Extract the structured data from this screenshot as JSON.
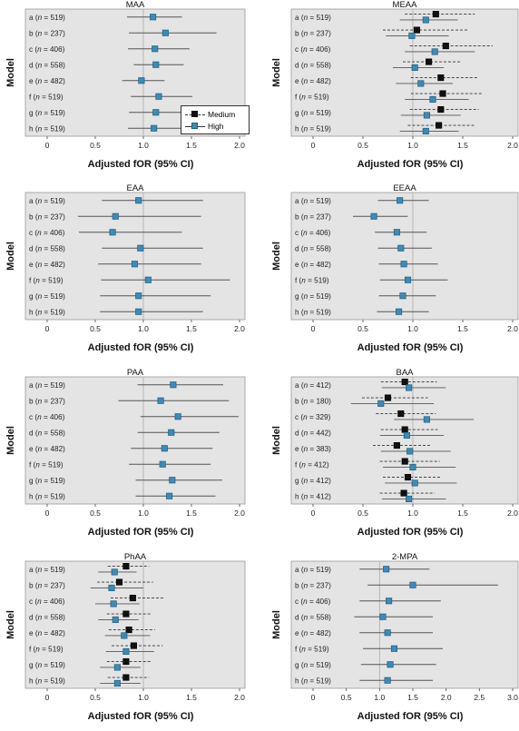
{
  "chart_data": [
    {
      "type": "forest",
      "title": "MAA",
      "xlabel": "Adjusted fOR (95% CI)",
      "ylabel": "Model",
      "xlim": [
        0,
        2.0
      ],
      "xticks": [
        "0",
        "0.5",
        "1.0",
        "1.5",
        "2.0"
      ],
      "rows": [
        {
          "label": "a (",
          "n": "519",
          "tail": ")"
        },
        {
          "label": "b (",
          "n": "237",
          "tail": ")"
        },
        {
          "label": "c (",
          "n": "406",
          "tail": ")"
        },
        {
          "label": "d (",
          "n": "558",
          "tail": ")"
        },
        {
          "label": "e (",
          "n": "482",
          "tail": ")"
        },
        {
          "label": "f (",
          "n": "519",
          "tail": ")"
        },
        {
          "label": "g (",
          "n": "519",
          "tail": ")"
        },
        {
          "label": "h (",
          "n": "519",
          "tail": ")"
        }
      ],
      "series": [
        {
          "name": "High",
          "est": [
            1.1,
            1.23,
            1.12,
            1.13,
            0.98,
            1.16,
            1.13,
            1.11
          ],
          "lo": [
            0.83,
            0.85,
            0.84,
            0.9,
            0.78,
            0.87,
            0.85,
            0.84
          ],
          "hi": [
            1.4,
            1.76,
            1.48,
            1.42,
            1.22,
            1.51,
            1.44,
            1.42
          ]
        }
      ]
    },
    {
      "type": "forest",
      "title": "MEAA",
      "xlabel": "Adjusted fOR (95% CI)",
      "ylabel": "Model",
      "xlim": [
        0,
        2.0
      ],
      "xticks": [
        "0",
        "0.5",
        "1.0",
        "1.5",
        "2.0"
      ],
      "rows": [
        {
          "label": "a (",
          "n": "519",
          "tail": ")"
        },
        {
          "label": "b (",
          "n": "237",
          "tail": ")"
        },
        {
          "label": "c (",
          "n": "406",
          "tail": ")"
        },
        {
          "label": "d (",
          "n": "558",
          "tail": ")"
        },
        {
          "label": "e (",
          "n": "482",
          "tail": ")"
        },
        {
          "label": "f (",
          "n": "519",
          "tail": ")"
        },
        {
          "label": "g (",
          "n": "519",
          "tail": ")"
        },
        {
          "label": "h (",
          "n": "519",
          "tail": ")"
        }
      ],
      "series": [
        {
          "name": "Medium",
          "est": [
            1.23,
            1.04,
            1.33,
            1.16,
            1.28,
            1.3,
            1.28,
            1.26
          ],
          "lo": [
            0.92,
            0.7,
            0.97,
            0.9,
            0.98,
            0.98,
            0.97,
            0.95
          ],
          "hi": [
            1.62,
            1.55,
            1.8,
            1.49,
            1.65,
            1.7,
            1.66,
            1.63
          ]
        },
        {
          "name": "High",
          "est": [
            1.13,
            0.99,
            1.22,
            1.02,
            1.08,
            1.2,
            1.14,
            1.13
          ],
          "lo": [
            0.87,
            0.73,
            0.92,
            0.8,
            0.83,
            0.92,
            0.88,
            0.87
          ],
          "hi": [
            1.45,
            1.36,
            1.62,
            1.31,
            1.4,
            1.56,
            1.48,
            1.46
          ]
        }
      ]
    },
    {
      "type": "forest",
      "title": "EAA",
      "xlabel": "Adjusted fOR (95% CI)",
      "ylabel": "Model",
      "xlim": [
        0,
        2.0
      ],
      "xticks": [
        "0",
        "0.5",
        "1.0",
        "1.5",
        "2.0"
      ],
      "rows": [
        {
          "label": "a (",
          "n": "519",
          "tail": ")"
        },
        {
          "label": "b (",
          "n": "237",
          "tail": ")"
        },
        {
          "label": "c (",
          "n": "406",
          "tail": ")"
        },
        {
          "label": "d (",
          "n": "558",
          "tail": ")"
        },
        {
          "label": "e (",
          "n": "482",
          "tail": ")"
        },
        {
          "label": "f (",
          "n": "519",
          "tail": ")"
        },
        {
          "label": "g (",
          "n": "519",
          "tail": ")"
        },
        {
          "label": "h (",
          "n": "519",
          "tail": ")"
        }
      ],
      "series": [
        {
          "name": "High",
          "est": [
            0.95,
            0.71,
            0.68,
            0.97,
            0.91,
            1.05,
            0.95,
            0.95
          ],
          "lo": [
            0.57,
            0.32,
            0.33,
            0.57,
            0.53,
            0.56,
            0.55,
            0.55
          ],
          "hi": [
            1.62,
            1.6,
            1.4,
            1.62,
            1.6,
            1.9,
            1.7,
            1.62
          ]
        }
      ]
    },
    {
      "type": "forest",
      "title": "EEAA",
      "xlabel": "Adjusted fOR (95% CI)",
      "ylabel": "Model",
      "xlim": [
        0,
        2.0
      ],
      "xticks": [
        "0",
        "0.5",
        "1.0",
        "1.5",
        "2.0"
      ],
      "rows": [
        {
          "label": "a (",
          "n": "519",
          "tail": ")"
        },
        {
          "label": "b (",
          "n": "237",
          "tail": ")"
        },
        {
          "label": "c (",
          "n": "406",
          "tail": ")"
        },
        {
          "label": "d (",
          "n": "558",
          "tail": ")"
        },
        {
          "label": "e (",
          "n": "482",
          "tail": ")"
        },
        {
          "label": "f (",
          "n": "519",
          "tail": ")"
        },
        {
          "label": "g (",
          "n": "519",
          "tail": ")"
        },
        {
          "label": "h (",
          "n": "519",
          "tail": ")"
        }
      ],
      "series": [
        {
          "name": "High",
          "est": [
            0.87,
            0.61,
            0.84,
            0.88,
            0.91,
            0.95,
            0.9,
            0.86
          ],
          "lo": [
            0.65,
            0.4,
            0.62,
            0.65,
            0.66,
            0.67,
            0.66,
            0.64
          ],
          "hi": [
            1.16,
            0.95,
            1.14,
            1.19,
            1.25,
            1.35,
            1.23,
            1.16
          ]
        }
      ]
    },
    {
      "type": "forest",
      "title": "PAA",
      "xlabel": "Adjusted fOR (95% CI)",
      "ylabel": "Model",
      "xlim": [
        0,
        2.0
      ],
      "xticks": [
        "0",
        "0.5",
        "1.0",
        "1.5",
        "2.0"
      ],
      "rows": [
        {
          "label": "a (",
          "n": "519",
          "tail": ")"
        },
        {
          "label": "b (",
          "n": "237",
          "tail": ")"
        },
        {
          "label": "c (",
          "n": "406",
          "tail": ")"
        },
        {
          "label": "d (",
          "n": "558",
          "tail": ")"
        },
        {
          "label": "e (",
          "n": "482",
          "tail": ")"
        },
        {
          "label": "f (",
          "n": "519",
          "tail": ")"
        },
        {
          "label": "g (",
          "n": "519",
          "tail": ")"
        },
        {
          "label": "h (",
          "n": "519",
          "tail": ")"
        }
      ],
      "series": [
        {
          "name": "High",
          "est": [
            1.31,
            1.18,
            1.36,
            1.29,
            1.22,
            1.2,
            1.3,
            1.27
          ],
          "lo": [
            0.94,
            0.74,
            0.97,
            0.94,
            0.87,
            0.85,
            0.92,
            0.92
          ],
          "hi": [
            1.83,
            1.89,
            1.99,
            1.79,
            1.72,
            1.7,
            1.82,
            1.75
          ]
        }
      ]
    },
    {
      "type": "forest",
      "title": "BAA",
      "xlabel": "Adjusted fOR (95% CI)",
      "ylabel": "Model",
      "xlim": [
        0,
        2.0
      ],
      "xticks": [
        "0",
        "0.5",
        "1.0",
        "1.5",
        "2.0"
      ],
      "rows": [
        {
          "label": "a (",
          "n": "412",
          "tail": ")"
        },
        {
          "label": "b (",
          "n": "180",
          "tail": ")"
        },
        {
          "label": "c (",
          "n": "329",
          "tail": ")"
        },
        {
          "label": "d (",
          "n": "442",
          "tail": ")"
        },
        {
          "label": "e (",
          "n": "383",
          "tail": ")"
        },
        {
          "label": "f (",
          "n": "412",
          "tail": ")"
        },
        {
          "label": "g (",
          "n": "412",
          "tail": ")"
        },
        {
          "label": "h (",
          "n": "412",
          "tail": ")"
        }
      ],
      "series": [
        {
          "name": "Medium",
          "est": [
            0.92,
            0.75,
            0.88,
            0.92,
            0.84,
            0.92,
            0.95,
            0.91
          ],
          "lo": [
            0.68,
            0.49,
            0.63,
            0.68,
            0.6,
            0.67,
            0.7,
            0.67
          ],
          "hi": [
            1.24,
            1.15,
            1.23,
            1.25,
            1.18,
            1.27,
            1.29,
            1.22
          ]
        },
        {
          "name": "High",
          "est": [
            0.96,
            0.68,
            1.14,
            0.94,
            0.97,
            1.0,
            1.02,
            0.96
          ],
          "lo": [
            0.69,
            0.38,
            0.81,
            0.67,
            0.68,
            0.7,
            0.72,
            0.69
          ],
          "hi": [
            1.33,
            1.21,
            1.61,
            1.31,
            1.38,
            1.43,
            1.44,
            1.33
          ]
        }
      ]
    },
    {
      "type": "forest",
      "title": "PhAA",
      "xlabel": "Adjusted fOR (95% CI)",
      "ylabel": "Model",
      "xlim": [
        0,
        2.0
      ],
      "xticks": [
        "0",
        "0.5",
        "1.0",
        "1.5",
        "2.0"
      ],
      "rows": [
        {
          "label": "a (",
          "n": "519",
          "tail": ")"
        },
        {
          "label": "b (",
          "n": "237",
          "tail": ")"
        },
        {
          "label": "c (",
          "n": "406",
          "tail": ")"
        },
        {
          "label": "d (",
          "n": "558",
          "tail": ")"
        },
        {
          "label": "e (",
          "n": "482",
          "tail": ")"
        },
        {
          "label": "f (",
          "n": "519",
          "tail": ")"
        },
        {
          "label": "g (",
          "n": "519",
          "tail": ")"
        },
        {
          "label": "h (",
          "n": "519",
          "tail": ")"
        }
      ],
      "series": [
        {
          "name": "Medium",
          "est": [
            0.82,
            0.75,
            0.89,
            0.82,
            0.85,
            0.9,
            0.82,
            0.82
          ],
          "lo": [
            0.63,
            0.52,
            0.66,
            0.62,
            0.64,
            0.67,
            0.62,
            0.63
          ],
          "hi": [
            1.06,
            1.1,
            1.21,
            1.09,
            1.12,
            1.2,
            1.09,
            1.06
          ]
        },
        {
          "name": "High",
          "est": [
            0.7,
            0.67,
            0.69,
            0.71,
            0.8,
            0.82,
            0.73,
            0.73
          ],
          "lo": [
            0.53,
            0.45,
            0.5,
            0.53,
            0.6,
            0.61,
            0.55,
            0.55
          ],
          "hi": [
            0.93,
            1.0,
            0.96,
            0.95,
            1.07,
            1.11,
            0.97,
            0.97
          ]
        }
      ]
    },
    {
      "type": "forest",
      "title": "2-MPA",
      "xlabel": "Adjusted fOR (95% CI)",
      "ylabel": "Model",
      "xlim": [
        0,
        3.0
      ],
      "xticks": [
        "0",
        "0.5",
        "1.0",
        "1.5",
        "2.0",
        "2.5",
        "3.0"
      ],
      "rows": [
        {
          "label": "a (",
          "n": "519",
          "tail": ")"
        },
        {
          "label": "b (",
          "n": "237",
          "tail": ")"
        },
        {
          "label": "c (",
          "n": "406",
          "tail": ")"
        },
        {
          "label": "d (",
          "n": "558",
          "tail": ")"
        },
        {
          "label": "e (",
          "n": "482",
          "tail": ")"
        },
        {
          "label": "f (",
          "n": "519",
          "tail": ")"
        },
        {
          "label": "g (",
          "n": "519",
          "tail": ")"
        },
        {
          "label": "h (",
          "n": "519",
          "tail": ")"
        }
      ],
      "series": [
        {
          "name": "High",
          "est": [
            1.1,
            1.5,
            1.14,
            1.05,
            1.12,
            1.22,
            1.16,
            1.12
          ],
          "lo": [
            0.7,
            0.82,
            0.7,
            0.62,
            0.7,
            0.75,
            0.72,
            0.7
          ],
          "hi": [
            1.75,
            2.78,
            1.92,
            1.8,
            1.8,
            1.95,
            1.85,
            1.8
          ]
        }
      ]
    }
  ],
  "legend": {
    "items": [
      {
        "label": "Medium",
        "color": "#111111",
        "line": "dashed"
      },
      {
        "label": "High",
        "color": "#3d8bb5",
        "line": "solid"
      }
    ]
  },
  "colors": {
    "panel_bg": "#e4e4e4",
    "medium_marker": "#111111",
    "high_marker": "#3d8bb5",
    "ci_line": "#555555",
    "ref_line": "#aaaaaa"
  }
}
